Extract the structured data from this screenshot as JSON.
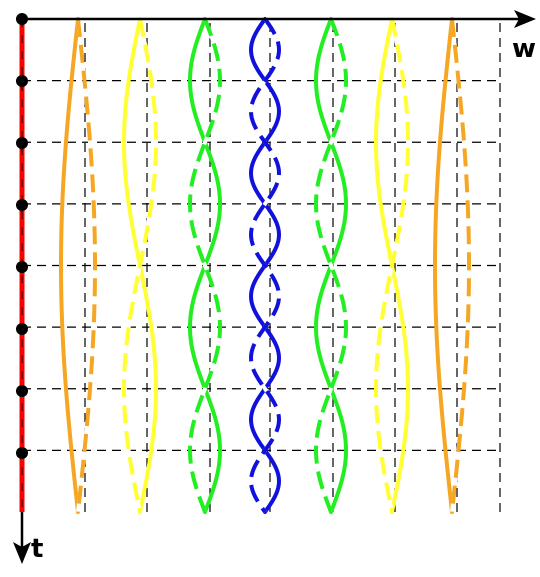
{
  "axes": {
    "horizontal_label": "w",
    "vertical_label": "t"
  },
  "colors": {
    "axis": "#000000",
    "time_axis_line": "#ff0000",
    "grid": "#000000",
    "nodes": "#000000",
    "dash_overlay": "#ffffff"
  },
  "grid": {
    "horizontal_lines": 8,
    "vertical_lines": 8,
    "style": "dashed"
  },
  "time_axis_nodes": 8,
  "wave_pairs": [
    {
      "name": "orange-left",
      "color": "#f5a623",
      "half_periods": 1
    },
    {
      "name": "yellow-left",
      "color": "#ffff33",
      "half_periods": 2
    },
    {
      "name": "green-left",
      "color": "#22ee22",
      "half_periods": 4
    },
    {
      "name": "blue-center",
      "color": "#1111dd",
      "half_periods": 8
    },
    {
      "name": "green-right",
      "color": "#22ee22",
      "half_periods": 4
    },
    {
      "name": "yellow-right",
      "color": "#ffff33",
      "half_periods": 2
    },
    {
      "name": "orange-right",
      "color": "#f5a623",
      "half_periods": 1
    }
  ]
}
